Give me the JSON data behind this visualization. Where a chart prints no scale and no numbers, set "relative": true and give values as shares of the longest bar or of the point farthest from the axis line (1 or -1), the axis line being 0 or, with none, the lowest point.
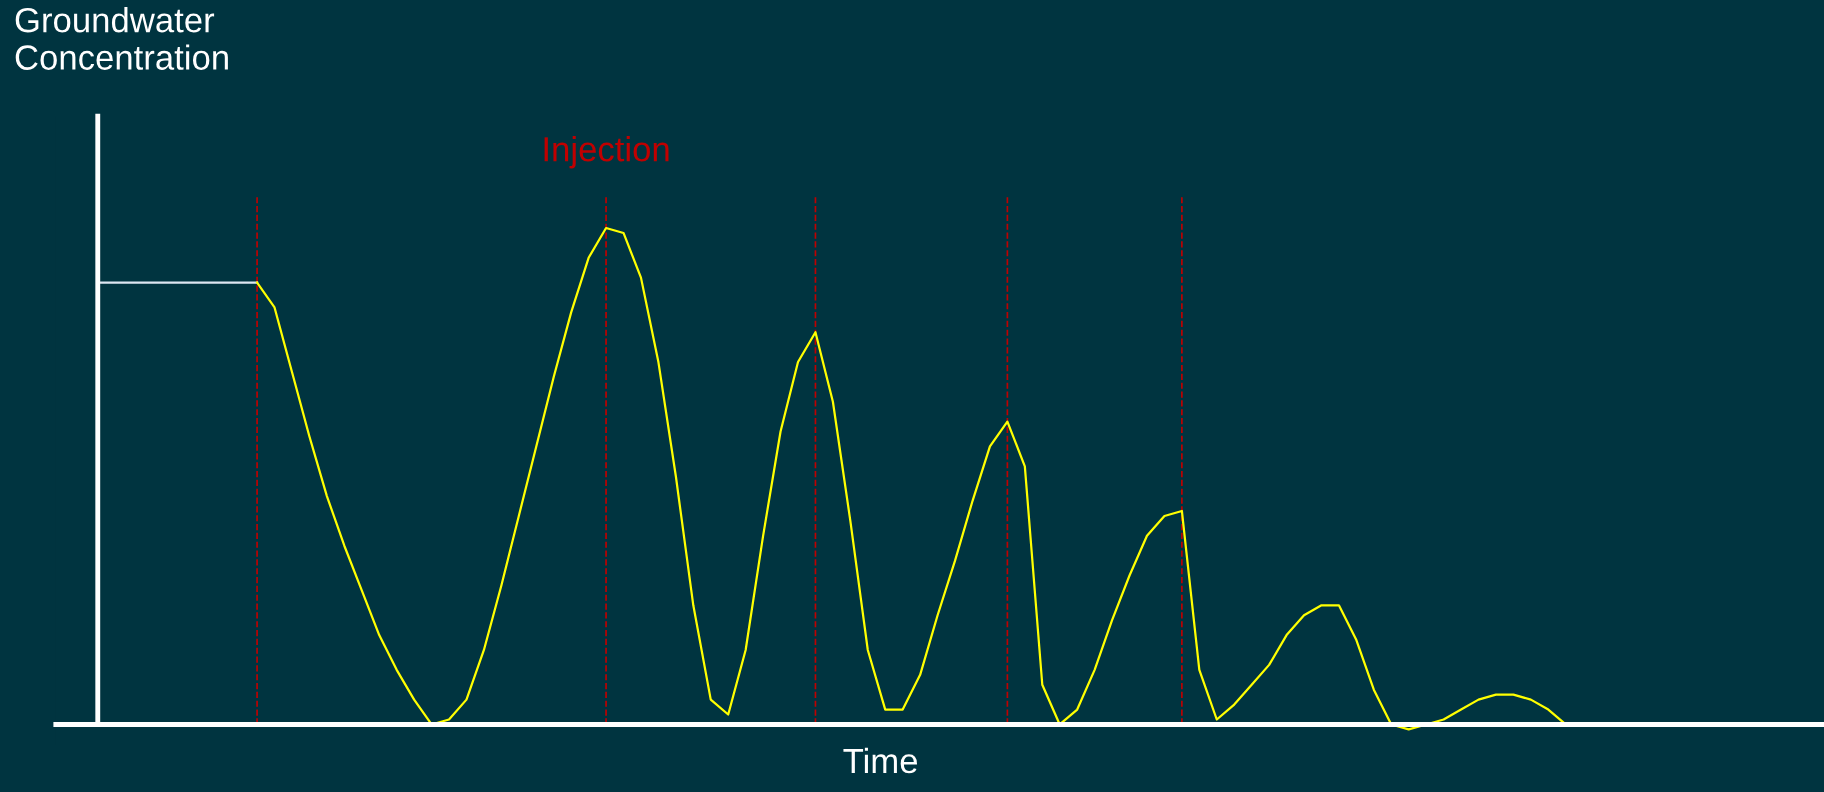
{
  "chart_data": {
    "type": "line",
    "relative": true,
    "xlabel": "Time",
    "ylabel": "Groundwater\nConcentration",
    "categories": [
      null,
      null,
      null,
      null,
      null,
      null,
      null,
      null,
      null,
      null,
      null,
      null,
      null,
      null,
      null,
      null,
      null,
      null,
      null,
      null,
      null,
      null,
      null,
      null,
      null,
      null,
      null,
      null,
      null,
      null,
      null,
      null,
      null,
      null,
      null,
      null,
      null,
      null,
      null,
      null,
      null,
      null,
      null,
      null,
      null,
      null,
      null,
      null,
      null,
      null,
      null,
      null,
      null,
      null,
      null,
      null,
      null,
      null,
      null,
      null,
      null,
      null,
      null,
      null,
      null,
      null,
      null,
      null,
      null,
      null,
      null,
      null,
      null,
      null,
      null,
      null,
      null,
      null,
      null,
      null,
      null,
      null,
      null,
      null,
      null
    ],
    "series": [
      {
        "color": "#dce6f2",
        "values": [
          0.89,
          0.89,
          0.89,
          0.89,
          0.89,
          0.89,
          0.89,
          0.89,
          0.89,
          0.89,
          null,
          null,
          null,
          null,
          null,
          null,
          null,
          null,
          null,
          null,
          null,
          null,
          null,
          null,
          null,
          null,
          null,
          null,
          null,
          null,
          null,
          null,
          null,
          null,
          null,
          null,
          null,
          null,
          null,
          null,
          null,
          null,
          null,
          null,
          null,
          null,
          null,
          null,
          null,
          null,
          null,
          null,
          null,
          null,
          null,
          null,
          null,
          null,
          null,
          null,
          null,
          null,
          null,
          null,
          null,
          null,
          null,
          null,
          null,
          null,
          null,
          null,
          null,
          null,
          null,
          null,
          null,
          null,
          null,
          null,
          null,
          null,
          null,
          null,
          null
        ]
      },
      {
        "color": "#ffff00",
        "values": [
          null,
          null,
          null,
          null,
          null,
          null,
          null,
          null,
          null,
          0.89,
          0.84,
          0.71,
          0.58,
          0.46,
          0.36,
          0.27,
          0.18,
          0.11,
          0.05,
          0.0,
          0.01,
          0.05,
          0.15,
          0.28,
          0.42,
          0.56,
          0.7,
          0.83,
          0.94,
          1.0,
          0.99,
          0.9,
          0.73,
          0.5,
          0.24,
          0.05,
          0.02,
          0.15,
          0.38,
          0.59,
          0.73,
          0.79,
          0.65,
          0.41,
          0.15,
          0.03,
          0.03,
          0.1,
          0.22,
          0.33,
          0.45,
          0.56,
          0.61,
          0.52,
          0.08,
          0.0,
          0.03,
          0.11,
          0.21,
          0.3,
          0.38,
          0.42,
          0.43,
          0.11,
          0.01,
          0.04,
          0.08,
          0.12,
          0.18,
          0.22,
          0.24,
          0.24,
          0.17,
          0.07,
          0.0,
          -0.01,
          0.0,
          0.01,
          0.03,
          0.05,
          0.06,
          0.06,
          0.05,
          0.03,
          0.0
        ]
      }
    ],
    "annotations": [
      "Injection"
    ],
    "grid": "x",
    "legend": false,
    "marker": "none",
    "line_style": "solid"
  }
}
